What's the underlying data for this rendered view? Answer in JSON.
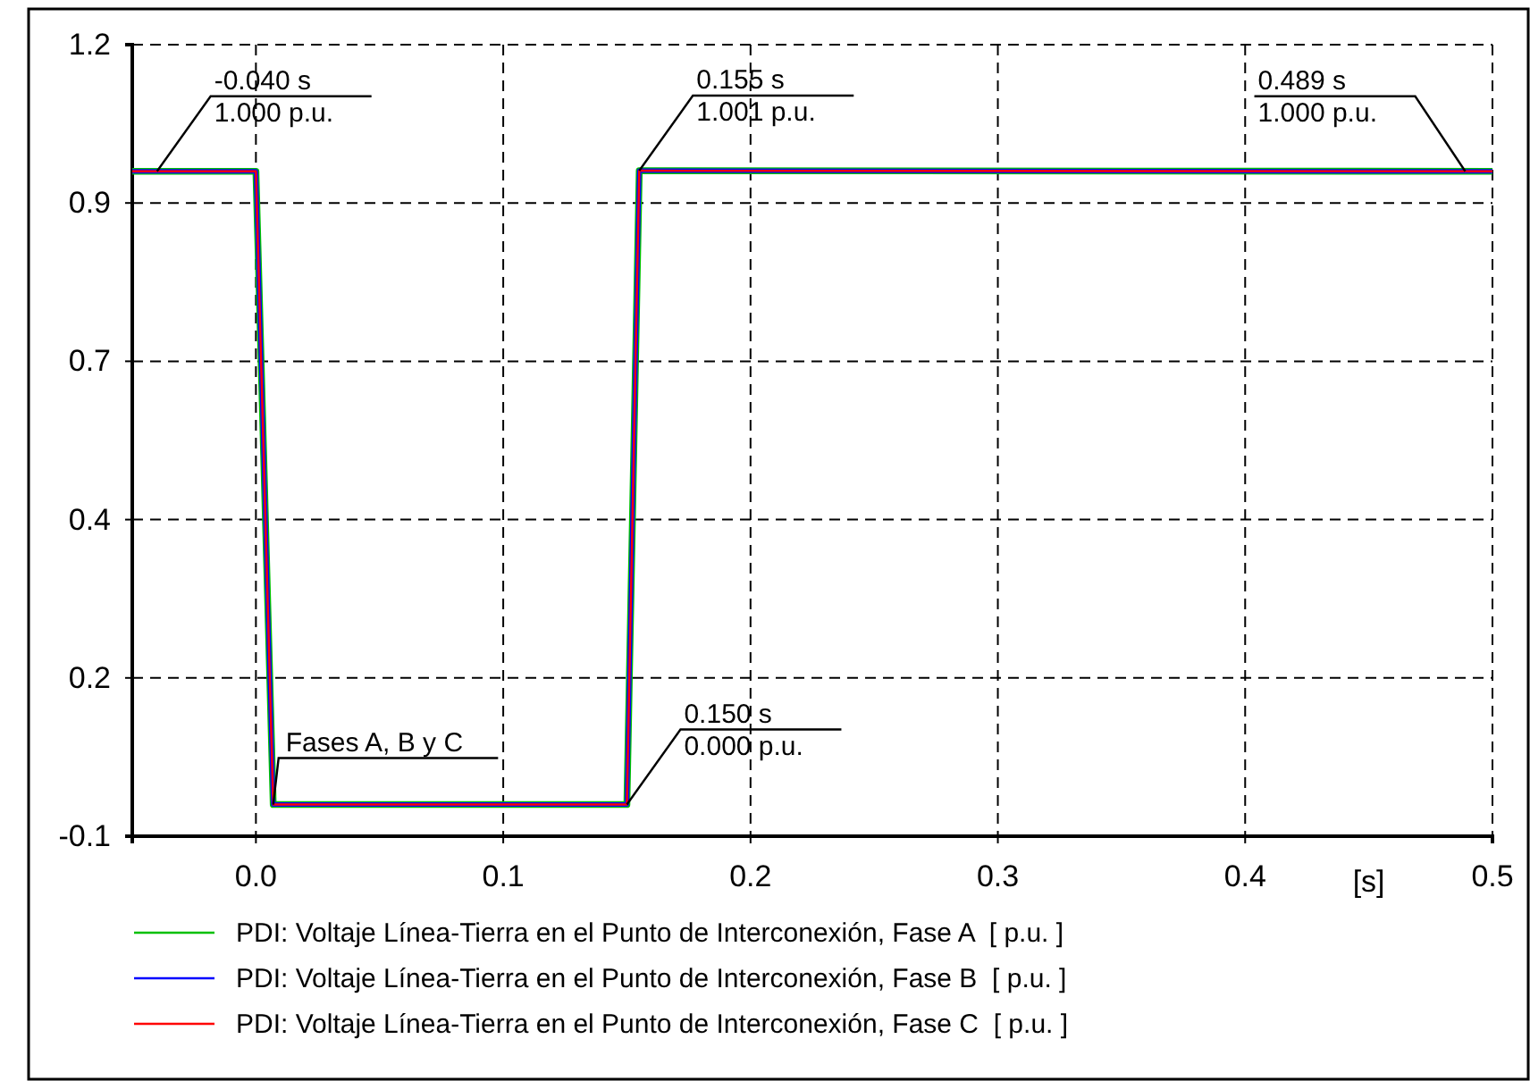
{
  "chart_data": {
    "type": "line",
    "xlabel": "[s]",
    "x": [
      -0.05,
      0,
      0.007,
      0.15,
      0.155,
      0.5
    ],
    "series": [
      {
        "name": "PDI: Voltaje Línea-Tierra en el Punto de Interconexión, Fase A  [ p.u. ]",
        "color": "#00c000",
        "values": [
          1.0,
          1.0,
          0.0,
          0.0,
          1.001,
          1.0
        ]
      },
      {
        "name": "PDI: Voltaje Línea-Tierra en el Punto de Interconexión, Fase B  [ p.u. ]",
        "color": "#0000ff",
        "values": [
          1.0,
          1.0,
          0.0,
          0.0,
          1.001,
          1.0
        ]
      },
      {
        "name": "PDI: Voltaje Línea-Tierra en el Punto de Interconexión, Fase C  [ p.u. ]",
        "color": "#ff0000",
        "values": [
          1.0,
          1.0,
          0.0,
          0.0,
          1.001,
          1.0
        ]
      }
    ],
    "xlim": [
      -0.05,
      0.5
    ],
    "xticks": [
      {
        "value": 0,
        "label": "0.0"
      },
      0.1,
      0.2,
      0.3,
      0.4,
      0.5
    ],
    "ylim": [
      -0.05,
      1.2
    ],
    "yticks": [
      {
        "value": -0.05,
        "label": "-0.1"
      },
      0.2,
      {
        "value": 0.45,
        "label": "0.4"
      },
      0.7,
      {
        "value": 0.95,
        "label": "0.9"
      },
      1.2
    ],
    "grid": true,
    "legend": "bottom",
    "line_style": "solid",
    "annotations": [
      {
        "text": "-0.040 s\n1.000 p.u.",
        "x": -0.04,
        "y": 1.0
      },
      {
        "text": "0.155 s\n1.001 p.u.",
        "x": 0.155,
        "y": 1.001
      },
      {
        "text": "0.489 s\n1.000 p.u.",
        "x": 0.489,
        "y": 1.0
      },
      {
        "text": "0.150 s\n0.000 p.u.",
        "x": 0.15,
        "y": 0.0
      },
      {
        "text": "Fases A, B y C",
        "x": 0.007,
        "y": 0.0
      }
    ]
  }
}
